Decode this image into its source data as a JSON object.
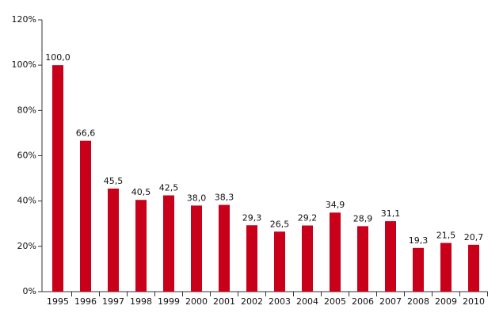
{
  "chart_data": {
    "type": "bar",
    "categories": [
      "1995",
      "1996",
      "1997",
      "1998",
      "1999",
      "2000",
      "2001",
      "2002",
      "2003",
      "2004",
      "2005",
      "2006",
      "2007",
      "2008",
      "2009",
      "2010"
    ],
    "values": [
      100.0,
      66.6,
      45.5,
      40.5,
      42.5,
      38.0,
      38.3,
      29.3,
      26.5,
      29.2,
      34.9,
      28.9,
      31.1,
      19.3,
      21.5,
      20.7
    ],
    "value_labels": [
      "100,0",
      "66,6",
      "45,5",
      "40,5",
      "42,5",
      "38,0",
      "38,3",
      "29,3",
      "26,5",
      "29,2",
      "34,9",
      "28,9",
      "31,1",
      "19,3",
      "21,5",
      "20,7"
    ],
    "color": "#c8001a",
    "ylim": [
      0,
      120
    ],
    "yticks": [
      {
        "value": 0,
        "label": "0%"
      },
      {
        "value": 20,
        "label": "20%"
      },
      {
        "value": 40,
        "label": "40%"
      },
      {
        "value": 60,
        "label": "60%"
      },
      {
        "value": 80,
        "label": "80%"
      },
      {
        "value": 100,
        "label": "100%"
      },
      {
        "value": 120,
        "label": "120%"
      }
    ],
    "grid": false
  }
}
